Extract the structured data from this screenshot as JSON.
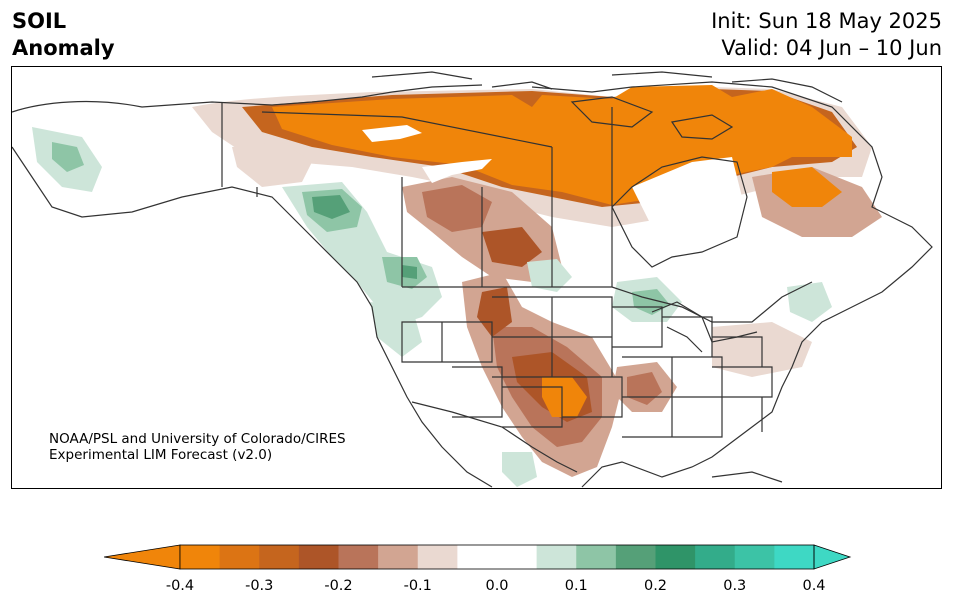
{
  "header": {
    "variable": "SOIL",
    "quantity": "Anomaly",
    "init_line": "Init: Sun 18 May 2025",
    "valid_line": "Valid: 04 Jun – 10 Jun"
  },
  "credit": {
    "line1": "NOAA/PSL and University of Colorado/CIRES",
    "line2": "Experimental LIM Forecast (v2.0)"
  },
  "colorbar": {
    "ticks": [
      "-0.4",
      "-0.3",
      "-0.2",
      "-0.1",
      "0.0",
      "0.1",
      "0.2",
      "0.3",
      "0.4"
    ],
    "colors": [
      "#f0850a",
      "#dc7414",
      "#c5651e",
      "#ad5528",
      "#b9745a",
      "#d2a592",
      "#ead9d1",
      "#ffffff",
      "#ffffff",
      "#cde5d9",
      "#8ec5a6",
      "#55a078",
      "#2f9468",
      "#33ac8a",
      "#3cc3a6",
      "#3ed8c4"
    ],
    "under_color": "#f0850a",
    "over_color": "#3ed8c4"
  }
}
